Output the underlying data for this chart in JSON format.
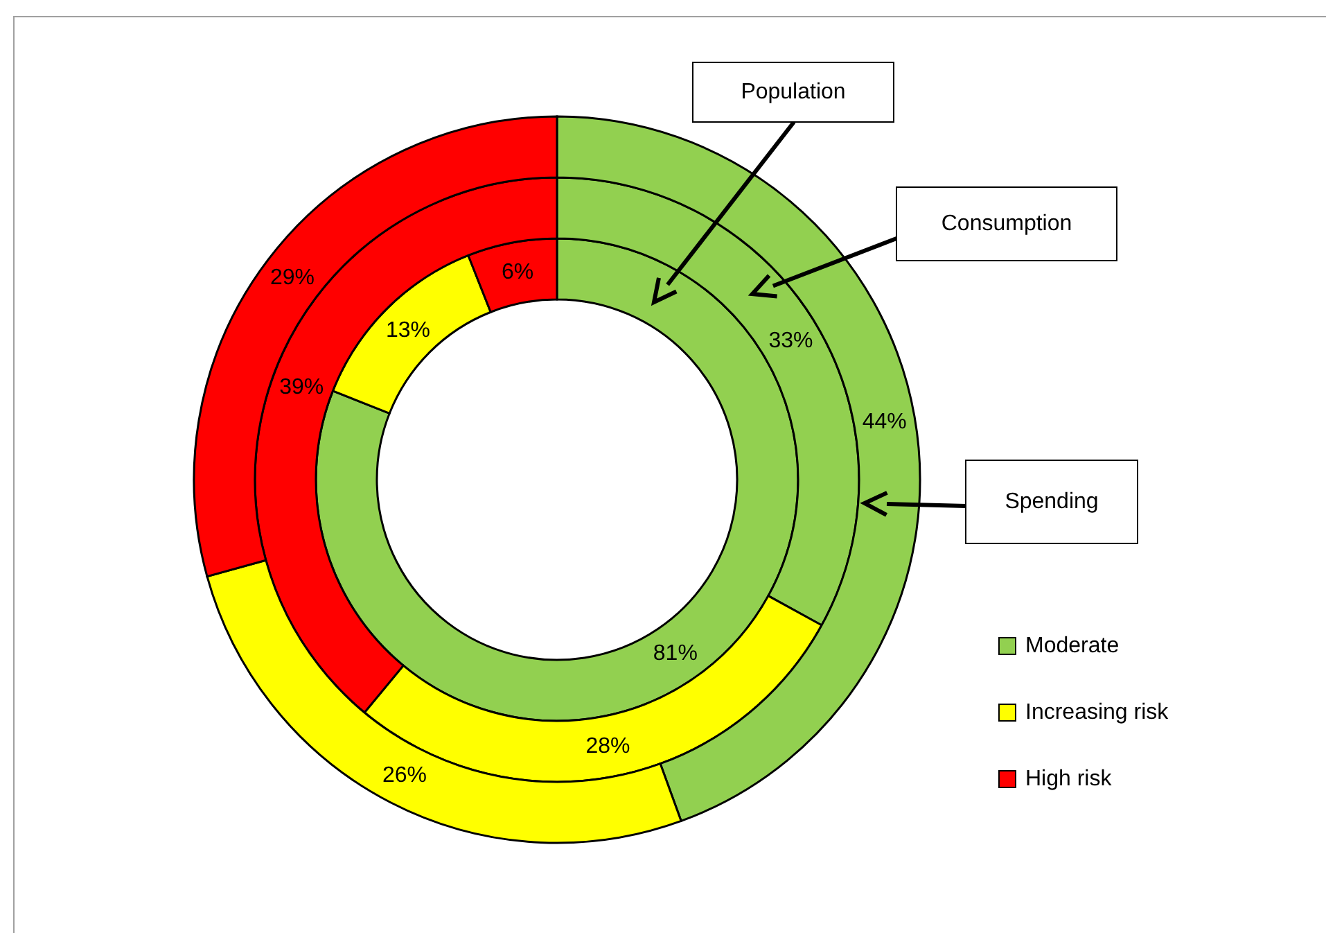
{
  "chart_data": {
    "type": "donut",
    "categories": [
      "Moderate",
      "Increasing risk",
      "High risk"
    ],
    "colors": [
      "#92d050",
      "#ffff00",
      "#ff0000"
    ],
    "legend": "right",
    "series": [
      {
        "name": "Population",
        "values": [
          81,
          13,
          6
        ],
        "value_labels": [
          "81%",
          "13%",
          "6%"
        ]
      },
      {
        "name": "Consumption",
        "values": [
          33,
          28,
          39
        ],
        "value_labels": [
          "33%",
          "28%",
          "39%"
        ]
      },
      {
        "name": "Spending",
        "values": [
          44,
          26,
          29
        ],
        "value_labels": [
          "44%",
          "26%",
          "29%"
        ]
      }
    ]
  }
}
